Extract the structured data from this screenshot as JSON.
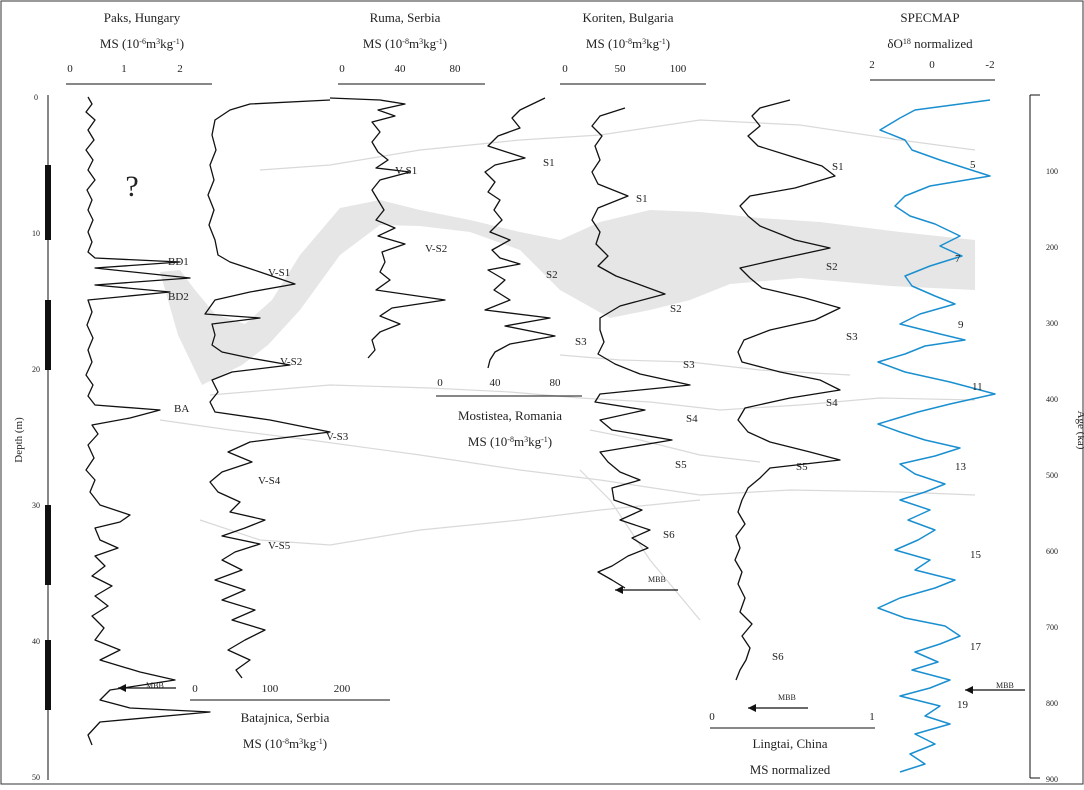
{
  "chart_data": {
    "type": "line",
    "title": "",
    "left_axis": {
      "label": "Depth (m)",
      "ticks": [
        "0",
        "10",
        "20",
        "30",
        "40",
        "50"
      ],
      "range": [
        0,
        50
      ]
    },
    "right_axis": {
      "label": "Age (ka)",
      "ticks": [
        "100",
        "200",
        "300",
        "400",
        "500",
        "600",
        "700",
        "800",
        "900"
      ],
      "range": [
        0,
        900
      ]
    },
    "columns": [
      {
        "name": "Paks, Hungary",
        "unit_html": "MS (10<tspan baseline-shift='super' font-size='8'>-6</tspan>m<tspan baseline-shift='super' font-size='8'>3</tspan>kg<tspan baseline-shift='super' font-size='8'>-1</tspan>)",
        "unit": "MS (10-6m3kg-1)",
        "ticks": [
          "0",
          "1",
          "2"
        ],
        "labels": [
          "?",
          "BD1",
          "BD2",
          "BA",
          "MBB"
        ]
      },
      {
        "name": "Batajnica, Serbia",
        "unit": "MS (10-8m3kg-1)",
        "ticks": [
          "0",
          "100",
          "200"
        ],
        "labels": [
          "V-S1",
          "V-S2",
          "V-S3",
          "V-S4",
          "V-S5"
        ]
      },
      {
        "name": "Ruma, Serbia",
        "unit": "MS (10-8m3kg-1)",
        "ticks": [
          "0",
          "40",
          "80"
        ],
        "labels": [
          "V-S1",
          "V-S2"
        ]
      },
      {
        "name": "Mostistea, Romania",
        "unit": "MS (10-8m3kg-1)",
        "ticks": [
          "0",
          "40",
          "80"
        ],
        "labels": [
          "S1",
          "S2",
          "S3"
        ]
      },
      {
        "name": "Koriten, Bulgaria",
        "unit": "MS (10-8m3kg-1)",
        "ticks": [
          "0",
          "50",
          "100"
        ],
        "labels": [
          "S1",
          "S2",
          "S3",
          "S4",
          "S5",
          "S6",
          "MBB"
        ]
      },
      {
        "name": "Lingtai, China",
        "unit": "MS normalized",
        "ticks": [
          "0",
          "1"
        ],
        "labels": [
          "S1",
          "S2",
          "S3",
          "S4",
          "S5",
          "S6",
          "MBB"
        ]
      },
      {
        "name": "SPECMAP",
        "unit": "δO18 normalized",
        "ticks": [
          "2",
          "0",
          "-2"
        ],
        "labels": [
          "5",
          "7",
          "9",
          "11",
          "13",
          "15",
          "17",
          "19",
          "MBB"
        ]
      }
    ],
    "colors": {
      "curve": "#111111",
      "specmap": "#1a8fd0",
      "correlation_band": "#e6e6e6",
      "axis": "#111111"
    }
  }
}
